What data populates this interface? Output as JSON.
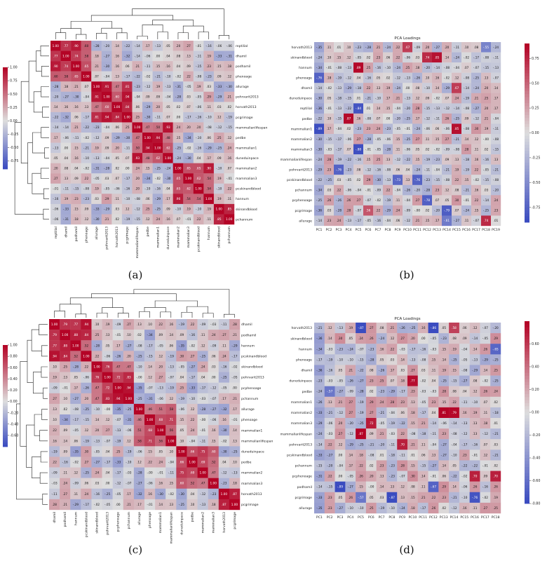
{
  "colors": {
    "neg": "#3b4cc0",
    "mid": "#dddddd",
    "pos": "#b40426"
  },
  "chart_data": [
    {
      "id": "a",
      "type": "heatmap",
      "title": "",
      "caption": "(a)",
      "variables": [
        "reptilial",
        "dhamil",
        "podhamil",
        "phenoage",
        "allurage",
        "pohrvarit2013",
        "horvath2013",
        "pcgrimage",
        "mammalianlifespan",
        "pedbe",
        "mammalian1",
        "duneduinpace",
        "mammalian2",
        "mammalian3",
        "pcskinandblood",
        "hannum",
        "skinandblood",
        "pchannum"
      ],
      "colorbar": {
        "ticks": [
          1.0,
          0.75,
          0.5,
          0.25,
          0.0,
          -0.25,
          -0.5,
          -0.75
        ],
        "range": [
          -0.9,
          1.0
        ]
      },
      "values_note": "symmetric correlation matrix, cell text printed at 2 decimals"
    },
    {
      "id": "b",
      "type": "heatmap",
      "title": "PCA Loadings",
      "caption": "(b)",
      "rows": [
        "horvath2013",
        "skinandblood",
        "hannum",
        "phenoage",
        "dhamil",
        "duneduinpace",
        "reptilial",
        "pedbe",
        "mammalian1",
        "mammalian2",
        "mammalian3",
        "mammalianlifespan",
        "pohrvarit2013",
        "pcskinandblood",
        "pchannum",
        "pcphenoage",
        "pcgrimage",
        "allurage"
      ],
      "columns": [
        "PC1",
        "PC2",
        "PC3",
        "PC4",
        "PC5",
        "PC6",
        "PC7",
        "PC8",
        "PC9",
        "PC10",
        "PC11",
        "PC12",
        "PC13",
        "PC14",
        "PC15",
        "PC16",
        "PC17",
        "PC18",
        "PC19"
      ],
      "colorbar": {
        "ticks": [
          0.75,
          0.5,
          0.25,
          0.0,
          -0.25,
          -0.5,
          -0.75
        ],
        "range": [
          -0.9,
          0.9
        ]
      }
    },
    {
      "id": "c",
      "type": "heatmap",
      "title": "",
      "caption": "(c)",
      "variables": [
        "dhamil",
        "podhamil",
        "hannum",
        "pcskinandblood",
        "skinandblood",
        "pohrvarit2013",
        "pcphenoage",
        "pchannum",
        "allurage",
        "phenoage",
        "mammalian1",
        "mammalianlifespan",
        "duneduinpace",
        "pedbe",
        "mammalian2",
        "mammalian3",
        "horvath2013",
        "pcgrimage"
      ],
      "colorbar": {
        "ticks": [
          1.0,
          0.8,
          0.6,
          0.4,
          0.2,
          0.0,
          -0.2,
          -0.4,
          -0.6
        ],
        "range": [
          -0.8,
          1.0
        ]
      }
    },
    {
      "id": "d",
      "type": "heatmap",
      "title": "PCA Loadings",
      "caption": "(d)",
      "rows": [
        "horvath2013",
        "skinandblood",
        "hannum",
        "phenoage",
        "dhamil",
        "duneduinpace",
        "pedbe",
        "mammalian1",
        "mammalian2",
        "mammalian3",
        "mammalianlifespan",
        "pohrvarit2013",
        "pcskinandblood",
        "pchannum",
        "pcphenoage",
        "podhamil",
        "pcgrimage",
        "allurage"
      ],
      "columns": [
        "PC1",
        "PC2",
        "PC3",
        "PC4",
        "PC5",
        "PC6",
        "PC7",
        "PC8",
        "PC9",
        "PC10",
        "PC11",
        "PC12",
        "PC13",
        "PC14",
        "PC15",
        "PC16",
        "PC17",
        "PC18"
      ],
      "colorbar": {
        "ticks": [
          0.6,
          0.4,
          0.2,
          0.0,
          -0.2,
          -0.4,
          -0.6,
          -0.8
        ],
        "range": [
          -0.8,
          0.8
        ]
      }
    }
  ]
}
